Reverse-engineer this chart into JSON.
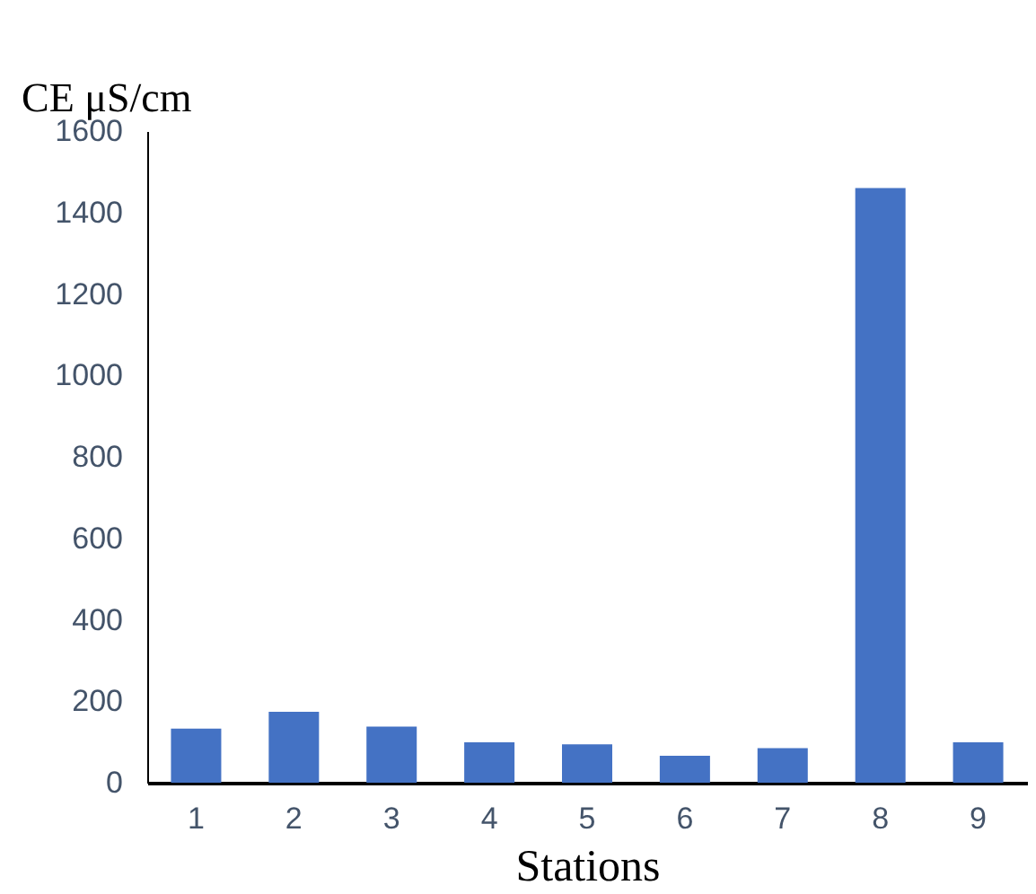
{
  "chart_data": {
    "type": "bar",
    "ylabel": "CE μS/cm",
    "xlabel": "Stations",
    "categories": [
      "1",
      "2",
      "3",
      "4",
      "5",
      "6",
      "7",
      "8",
      "9"
    ],
    "values": [
      133,
      174,
      138,
      99,
      94,
      66,
      85,
      1460,
      99
    ],
    "color": "#4472c4",
    "ylim": [
      0,
      1600
    ],
    "yticks": [
      0,
      200,
      400,
      600,
      800,
      1000,
      1200,
      1400,
      1600
    ],
    "grid": false
  }
}
